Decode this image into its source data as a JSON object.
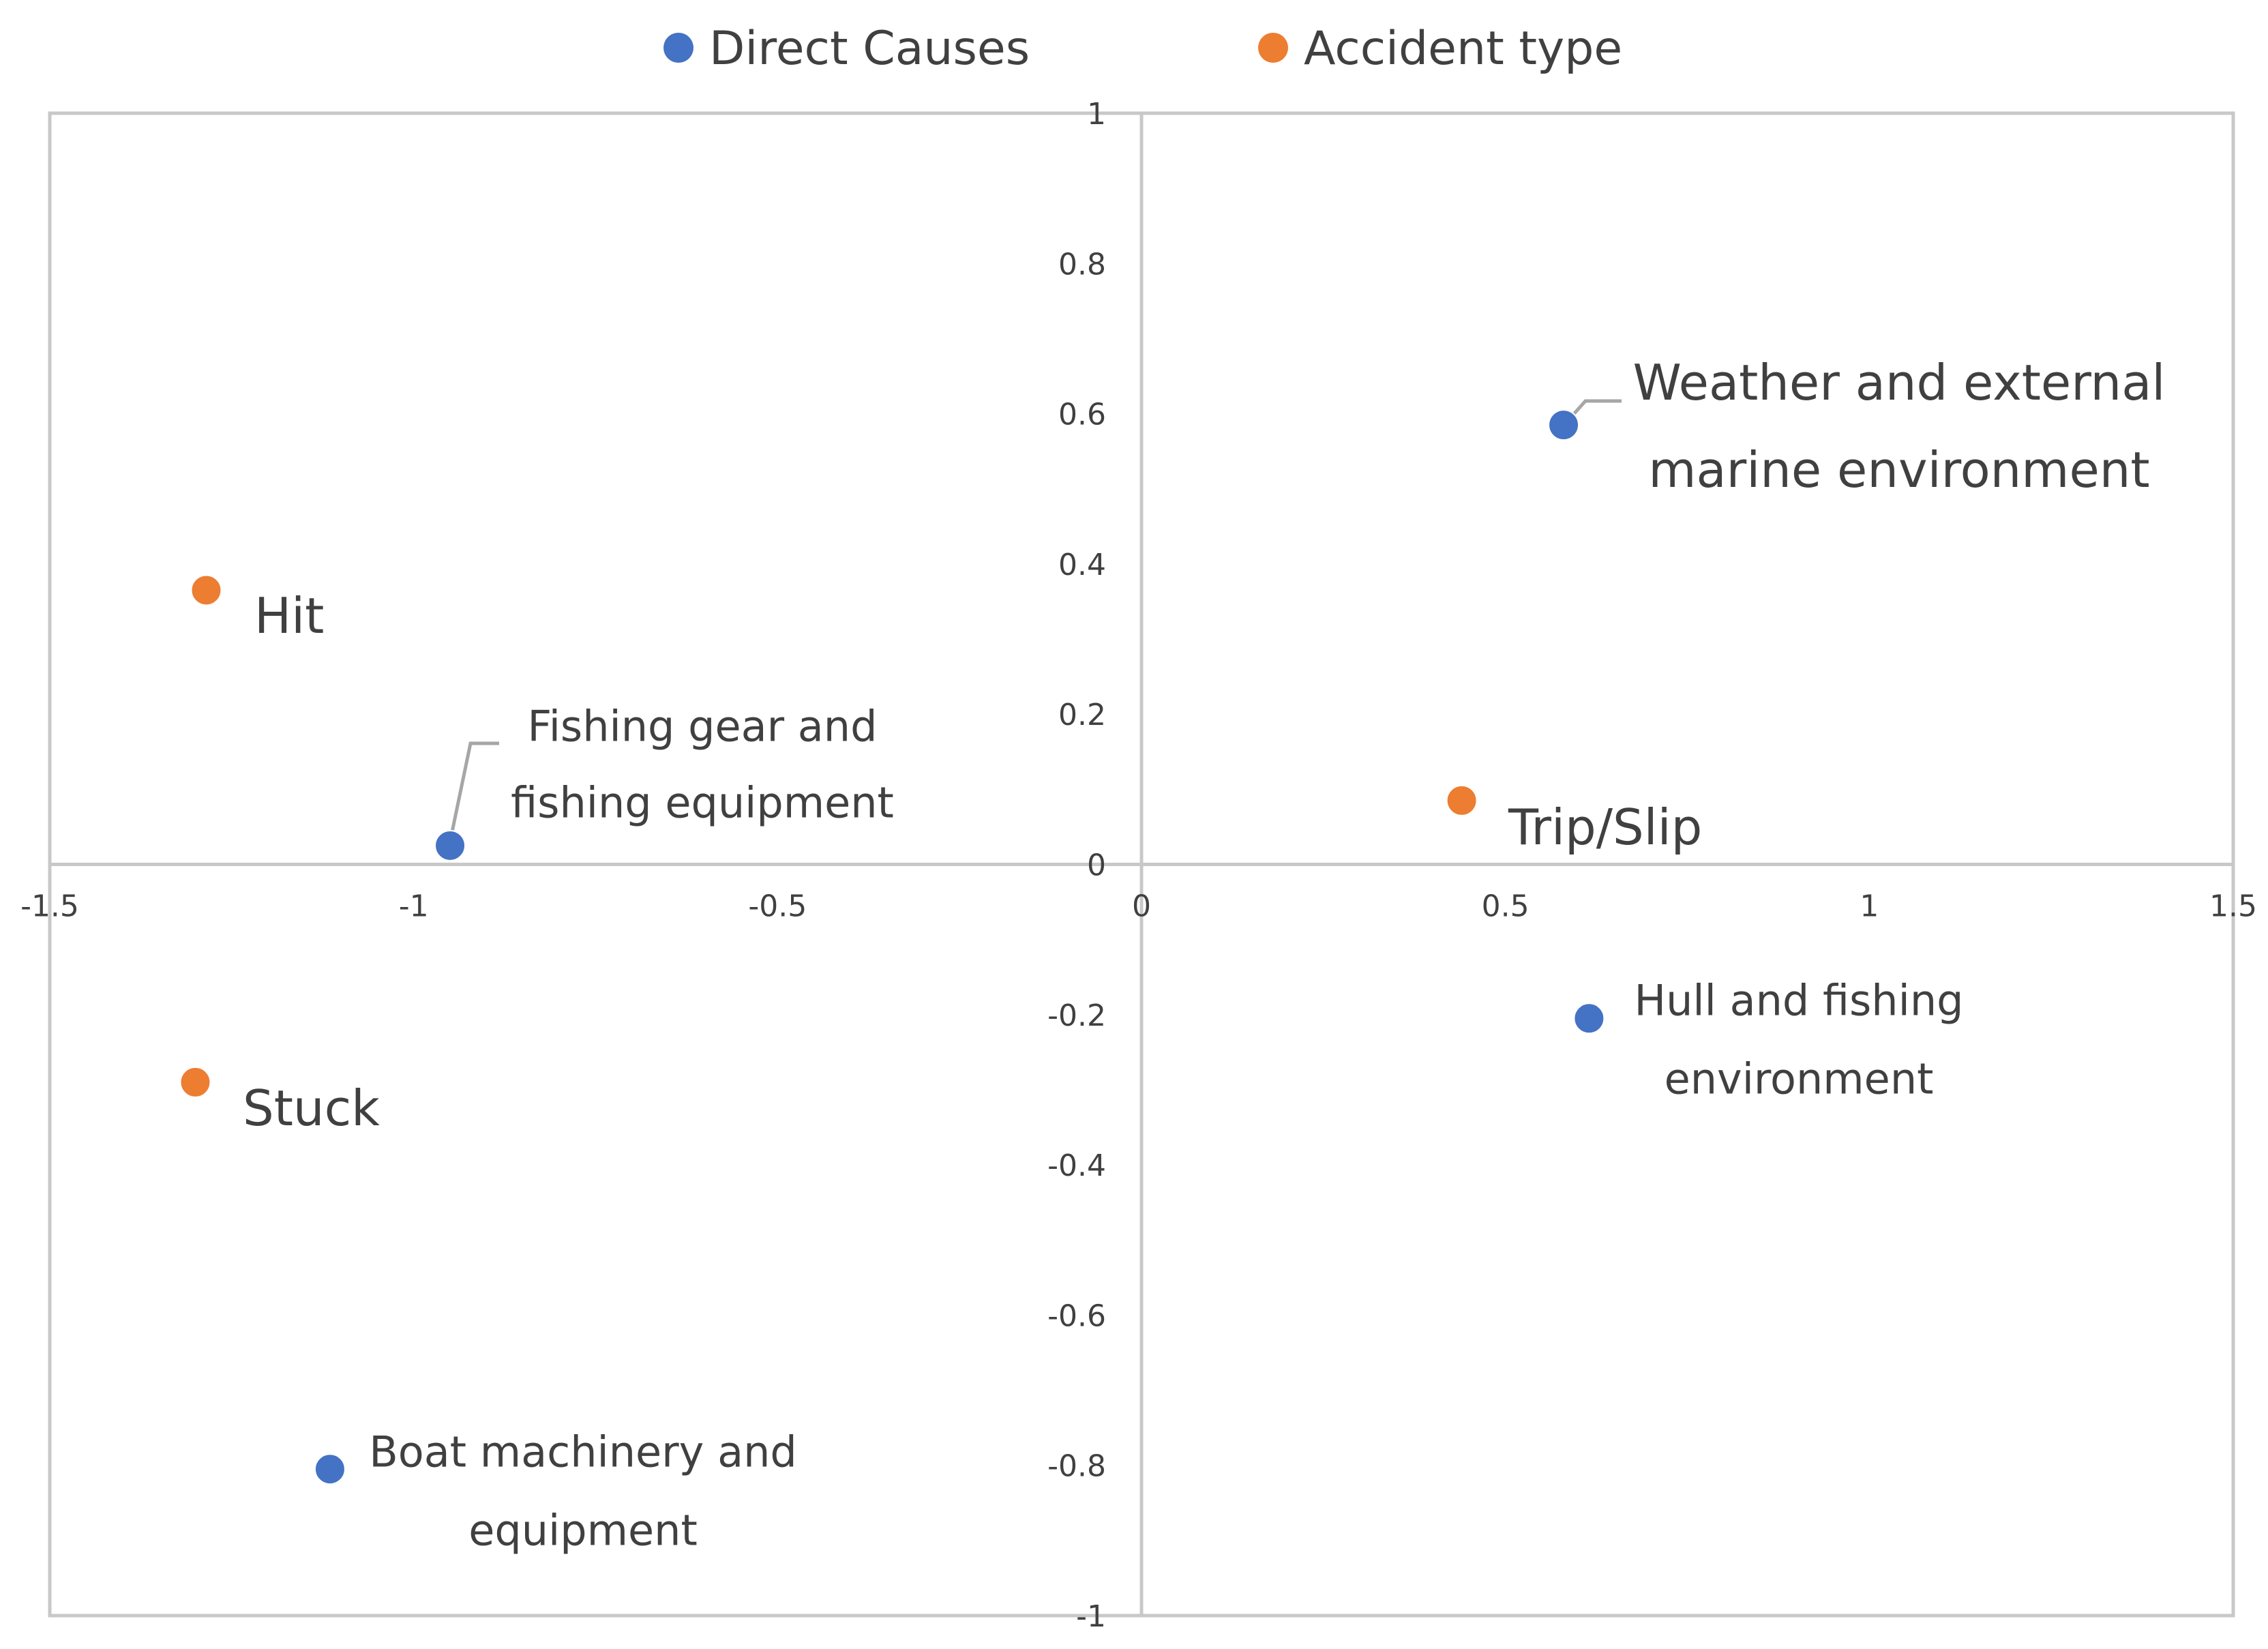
{
  "chart_data": {
    "type": "scatter",
    "title": "",
    "xlabel": "",
    "ylabel": "",
    "xlim": [
      -1.5,
      1.5
    ],
    "ylim": [
      -1,
      1
    ],
    "xticks": [
      "-1.5",
      "-1",
      "-0.5",
      "0",
      "0.5",
      "1",
      "1.5"
    ],
    "yticks": [
      "1",
      "0.8",
      "0.6",
      "0.4",
      "0.2",
      "0",
      "-0.2",
      "-0.4",
      "-0.6",
      "-0.8",
      "-1"
    ],
    "legend": {
      "position": "top-center",
      "entries": [
        {
          "name": "Direct Causes",
          "color": "#4472C4"
        },
        {
          "name": "Accident type",
          "color": "#ED7D31"
        }
      ]
    },
    "series": [
      {
        "name": "Direct Causes",
        "color": "#4472C4",
        "points": [
          {
            "x": -0.95,
            "y": 0.025,
            "lines": [
              "Fishing gear and",
              "fishing equipment"
            ]
          },
          {
            "x": 0.58,
            "y": 0.585,
            "lines": [
              "Weather and external",
              "marine environment"
            ]
          },
          {
            "x": 0.615,
            "y": -0.205,
            "lines": [
              "Hull and fishing",
              "environment"
            ]
          },
          {
            "x": -1.115,
            "y": -0.805,
            "lines": [
              "Boat machinery and",
              "equipment"
            ]
          }
        ]
      },
      {
        "name": "Accident type",
        "color": "#ED7D31",
        "points": [
          {
            "x": -1.285,
            "y": 0.365,
            "lines": [
              "Hit"
            ]
          },
          {
            "x": -1.3,
            "y": -0.29,
            "lines": [
              "Stuck"
            ]
          },
          {
            "x": 0.44,
            "y": 0.085,
            "lines": [
              "Trip/Slip"
            ]
          }
        ]
      }
    ]
  }
}
